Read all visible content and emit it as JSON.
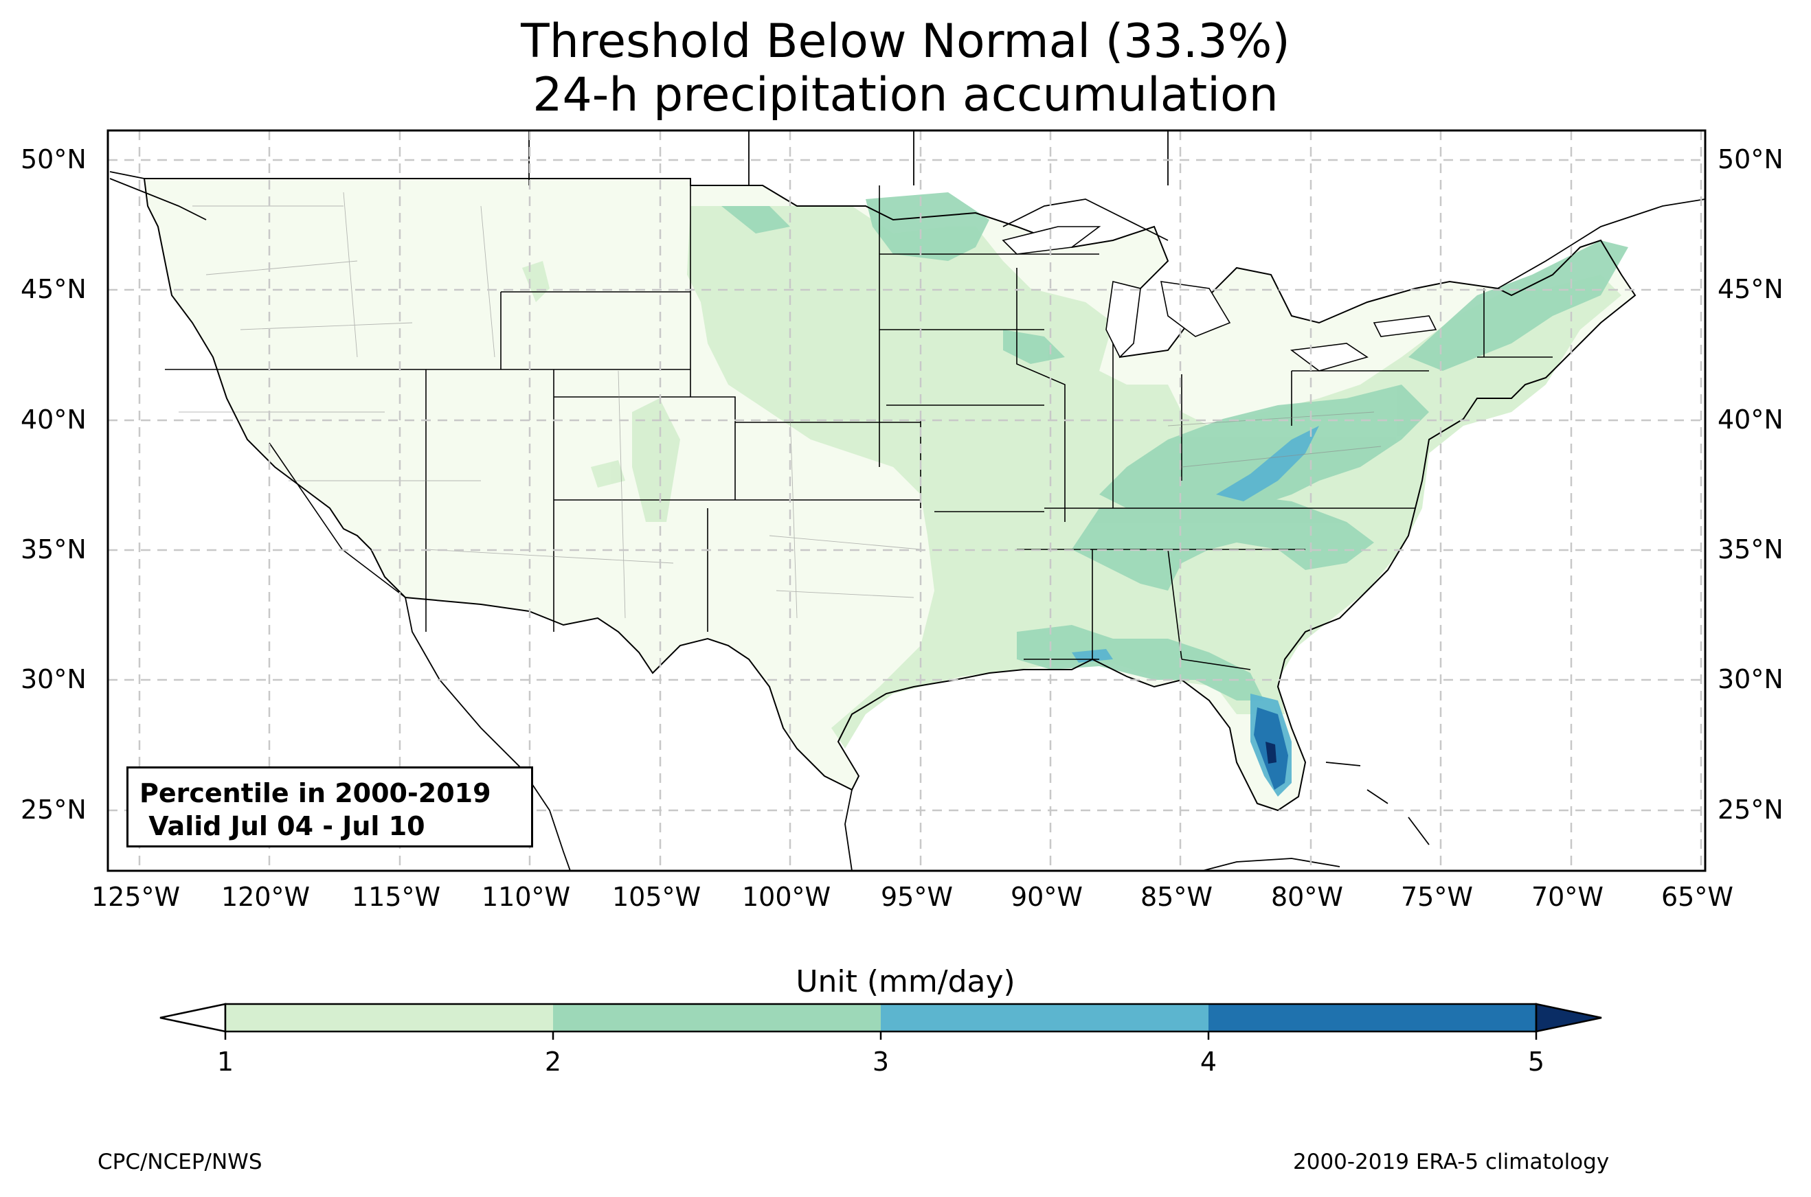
{
  "title": {
    "line1": "Threshold Below Normal (33.3%)",
    "line2": "24-h precipitation accumulation"
  },
  "map": {
    "projection": "PlateCarree",
    "lon_range": [
      -126.3,
      -64.8
    ],
    "lat_range": [
      22.7,
      51.2
    ],
    "lon_ticks": [
      "125°W",
      "120°W",
      "115°W",
      "110°W",
      "105°W",
      "100°W",
      "95°W",
      "90°W",
      "85°W",
      "80°W",
      "75°W",
      "70°W",
      "65°W"
    ],
    "lat_ticks": [
      "50°N",
      "45°N",
      "40°N",
      "35°N",
      "30°N",
      "25°N"
    ],
    "gridlines": "dashed",
    "background_fill_color": "#f5fbef",
    "region_fills": [
      {
        "area": "Northern Plains / Upper Midwest",
        "level": "1-2"
      },
      {
        "area": "Eastern US (Ohio Valley, Southeast, Northeast)",
        "level": "1-3"
      },
      {
        "area": "West Virginia / Kentucky band",
        "level": "3-4"
      },
      {
        "area": "Southern Florida peninsula",
        "level": "3-5"
      }
    ]
  },
  "infobox": {
    "line1": "Percentile in 2000-2019",
    "line2": " Valid Jul 04 - Jul 10"
  },
  "colorbar": {
    "title": "Unit (mm/day)",
    "ticks": [
      "1",
      "2",
      "3",
      "4",
      "5"
    ],
    "colors": [
      "#d6efd0",
      "#9dd8b8",
      "#5cb5cf",
      "#1f72ae",
      "#0a2d65"
    ],
    "under_color": "#ffffff",
    "extend": "both"
  },
  "footer": {
    "left": "CPC/NCEP/NWS",
    "right": "2000-2019 ERA-5 climatology"
  }
}
